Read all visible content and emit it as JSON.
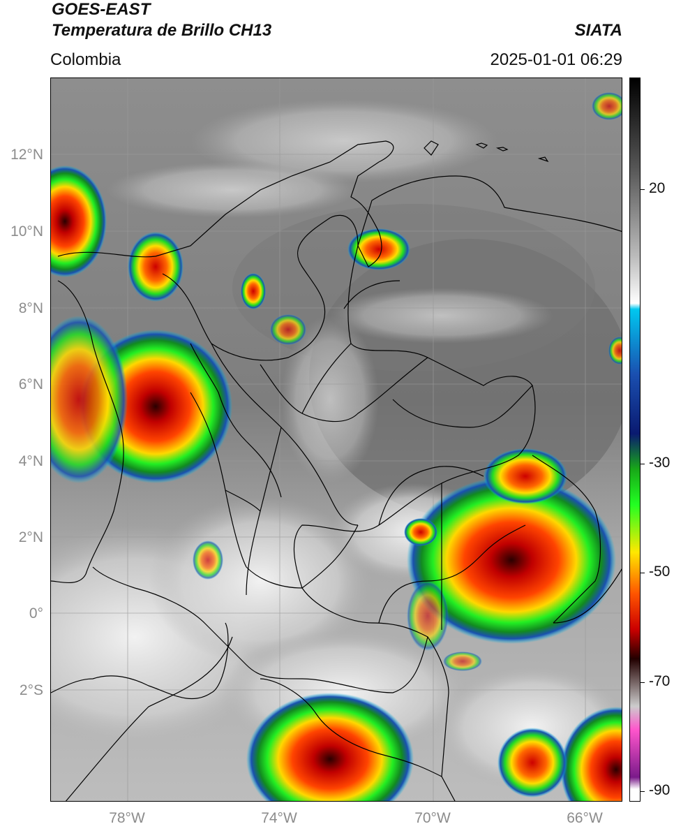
{
  "header": {
    "title_line1": "GOES-EAST",
    "title_line2": "Temperatura de Brillo CH13",
    "region": "Colombia",
    "agency": "SIATA",
    "datetime": "2025-01-01 06:29"
  },
  "map": {
    "lat_labels": [
      "12°N",
      "10°N",
      "8°N",
      "6°N",
      "4°N",
      "2°N",
      "0°",
      "2°S"
    ],
    "lon_labels": [
      "78°W",
      "74°W",
      "70°W",
      "66°W"
    ],
    "lon_range": [
      -80,
      -65
    ],
    "lat_range": [
      -4.9,
      14
    ]
  },
  "colorbar": {
    "tick_labels": [
      "20",
      "-30",
      "-50",
      "-70",
      "-90"
    ],
    "range": [
      -92,
      30
    ],
    "stops": [
      {
        "t": 30,
        "color": "#000000"
      },
      {
        "t": 15,
        "color": "#555555"
      },
      {
        "t": 0,
        "color": "#bbbbbb"
      },
      {
        "t": -8,
        "color": "#ffffff"
      },
      {
        "t": -9,
        "color": "#00c8f0"
      },
      {
        "t": -20,
        "color": "#1a4fb0"
      },
      {
        "t": -30,
        "color": "#0a1a70"
      },
      {
        "t": -36,
        "color": "#18a818"
      },
      {
        "t": -42,
        "color": "#22ff22"
      },
      {
        "t": -50,
        "color": "#ffe800"
      },
      {
        "t": -57,
        "color": "#ff5500"
      },
      {
        "t": -63,
        "color": "#cc0000"
      },
      {
        "t": -68,
        "color": "#220000"
      },
      {
        "t": -76,
        "color": "#cccccc"
      },
      {
        "t": -80,
        "color": "#ff55cc"
      },
      {
        "t": -88,
        "color": "#7a1a8a"
      },
      {
        "t": -90,
        "color": "#ffffff"
      }
    ]
  }
}
